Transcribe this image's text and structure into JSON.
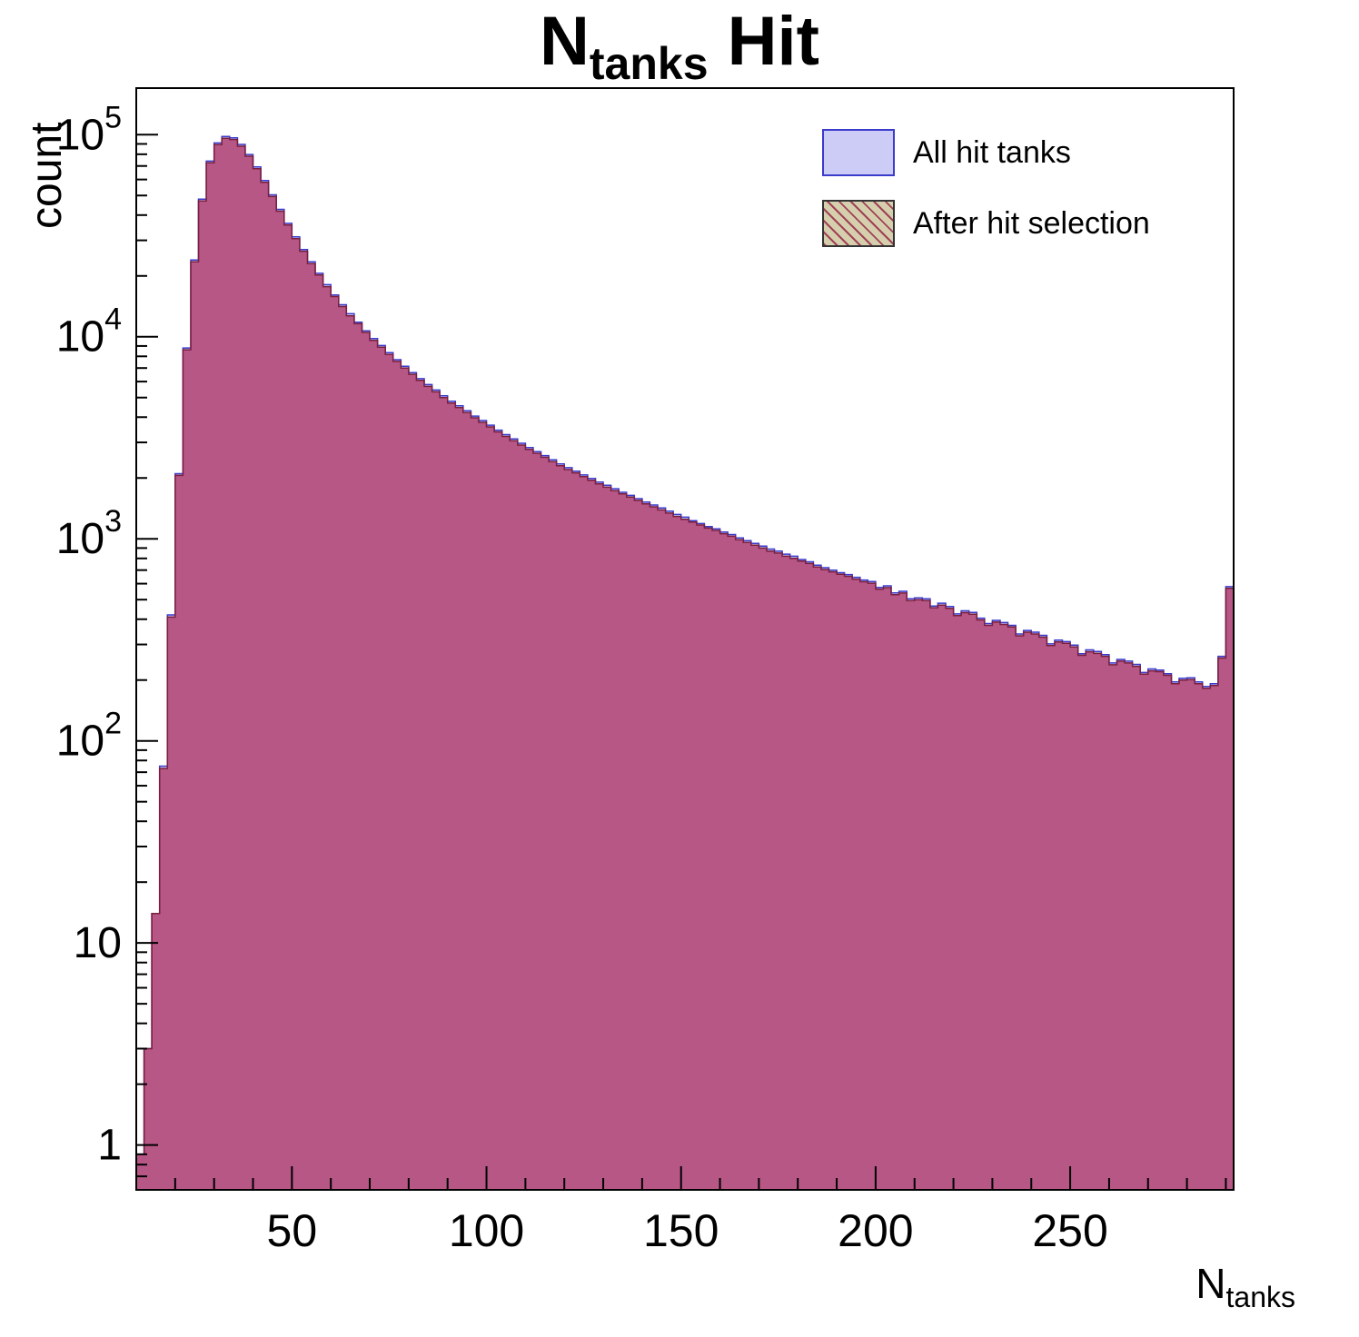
{
  "title": {
    "prefix": "N",
    "sub": "tanks",
    "suffix": " Hit"
  },
  "axes": {
    "ylabel": "count",
    "xlabel_prefix": "N",
    "xlabel_sub": "tanks"
  },
  "legend": {
    "entries": [
      {
        "label": "All hit tanks",
        "swatch": "all"
      },
      {
        "label": "After hit selection",
        "swatch": "selected"
      }
    ]
  },
  "chart_data": {
    "type": "bar",
    "subtype": "histogram-overlay",
    "log_y": true,
    "title": "N_tanks Hit",
    "xlabel": "N_tanks",
    "ylabel": "count",
    "xlim": [
      10,
      292
    ],
    "ylim": [
      0.6,
      170000
    ],
    "x_ticks": [
      50,
      100,
      150,
      200,
      250
    ],
    "y_ticks": [
      {
        "value": 1,
        "label": "1"
      },
      {
        "value": 10,
        "label": "10"
      },
      {
        "value": 100,
        "base": "10",
        "exp": "2"
      },
      {
        "value": 1000,
        "base": "10",
        "exp": "3"
      },
      {
        "value": 10000,
        "base": "10",
        "exp": "4"
      },
      {
        "value": 100000,
        "base": "10",
        "exp": "5"
      }
    ],
    "legend_position": "top-right",
    "grid": false,
    "bin_start": 10,
    "bin_width": 2,
    "series": [
      {
        "name": "All hit tanks",
        "fill": "#ccccf6",
        "stroke": "#3b3bcc",
        "values": [
          0.9,
          3,
          14,
          75,
          420,
          2100,
          8800,
          24000,
          48000,
          74000,
          91000,
          98000,
          96500,
          89500,
          79800,
          69200,
          59300,
          50400,
          42700,
          36400,
          31200,
          27000,
          23500,
          20600,
          18100,
          16100,
          14400,
          13000,
          11800,
          10700,
          9800,
          9050,
          8350,
          7700,
          7150,
          6650,
          6200,
          5800,
          5450,
          5100,
          4800,
          4550,
          4300,
          4050,
          3850,
          3650,
          3450,
          3280,
          3120,
          2970,
          2830,
          2700,
          2580,
          2460,
          2350,
          2250,
          2160,
          2070,
          1990,
          1910,
          1840,
          1770,
          1700,
          1640,
          1580,
          1520,
          1470,
          1420,
          1370,
          1320,
          1280,
          1230,
          1190,
          1150,
          1120,
          1080,
          1050,
          1010,
          980,
          950,
          920,
          890,
          870,
          840,
          820,
          790,
          770,
          740,
          720,
          700,
          680,
          665,
          645,
          625,
          615,
          575,
          585,
          540,
          550,
          505,
          510,
          505,
          465,
          480,
          462,
          425,
          440,
          432,
          405,
          381,
          395,
          385,
          373,
          338,
          352,
          345,
          333,
          302,
          315,
          310,
          298,
          270,
          282,
          277,
          267,
          243,
          253,
          248,
          239,
          218,
          227,
          224,
          215,
          196,
          204,
          205,
          196,
          186,
          192,
          262,
          580
        ]
      },
      {
        "name": "After hit selection",
        "fill": "rgba(176,48,96,0.75)",
        "stroke": "#7a1f3d",
        "values": [
          0.9,
          3,
          14,
          73,
          410,
          2060,
          8620,
          23500,
          47000,
          72500,
          89200,
          96000,
          94600,
          87700,
          78200,
          67800,
          58100,
          49400,
          41800,
          35700,
          30600,
          26500,
          23000,
          20200,
          17700,
          15800,
          14100,
          12700,
          11600,
          10500,
          9600,
          8870,
          8180,
          7550,
          7000,
          6520,
          6080,
          5680,
          5340,
          5000,
          4700,
          4460,
          4210,
          3970,
          3770,
          3580,
          3380,
          3210,
          3060,
          2910,
          2770,
          2650,
          2530,
          2410,
          2300,
          2200,
          2120,
          2030,
          1950,
          1870,
          1800,
          1730,
          1670,
          1610,
          1550,
          1490,
          1440,
          1390,
          1340,
          1290,
          1250,
          1210,
          1170,
          1130,
          1100,
          1060,
          1030,
          990,
          960,
          930,
          900,
          870,
          850,
          820,
          800,
          775,
          755,
          725,
          705,
          686,
          667,
          652,
          632,
          613,
          603,
          564,
          573,
          529,
          539,
          495,
          500,
          495,
          456,
          470,
          453,
          417,
          431,
          423,
          397,
          373,
          387,
          377,
          366,
          331,
          345,
          338,
          326,
          296,
          309,
          304,
          292,
          265,
          276,
          271,
          262,
          238,
          248,
          243,
          234,
          214,
          222,
          220,
          211,
          192,
          200,
          201,
          192,
          182,
          188,
          257,
          569
        ]
      }
    ]
  }
}
